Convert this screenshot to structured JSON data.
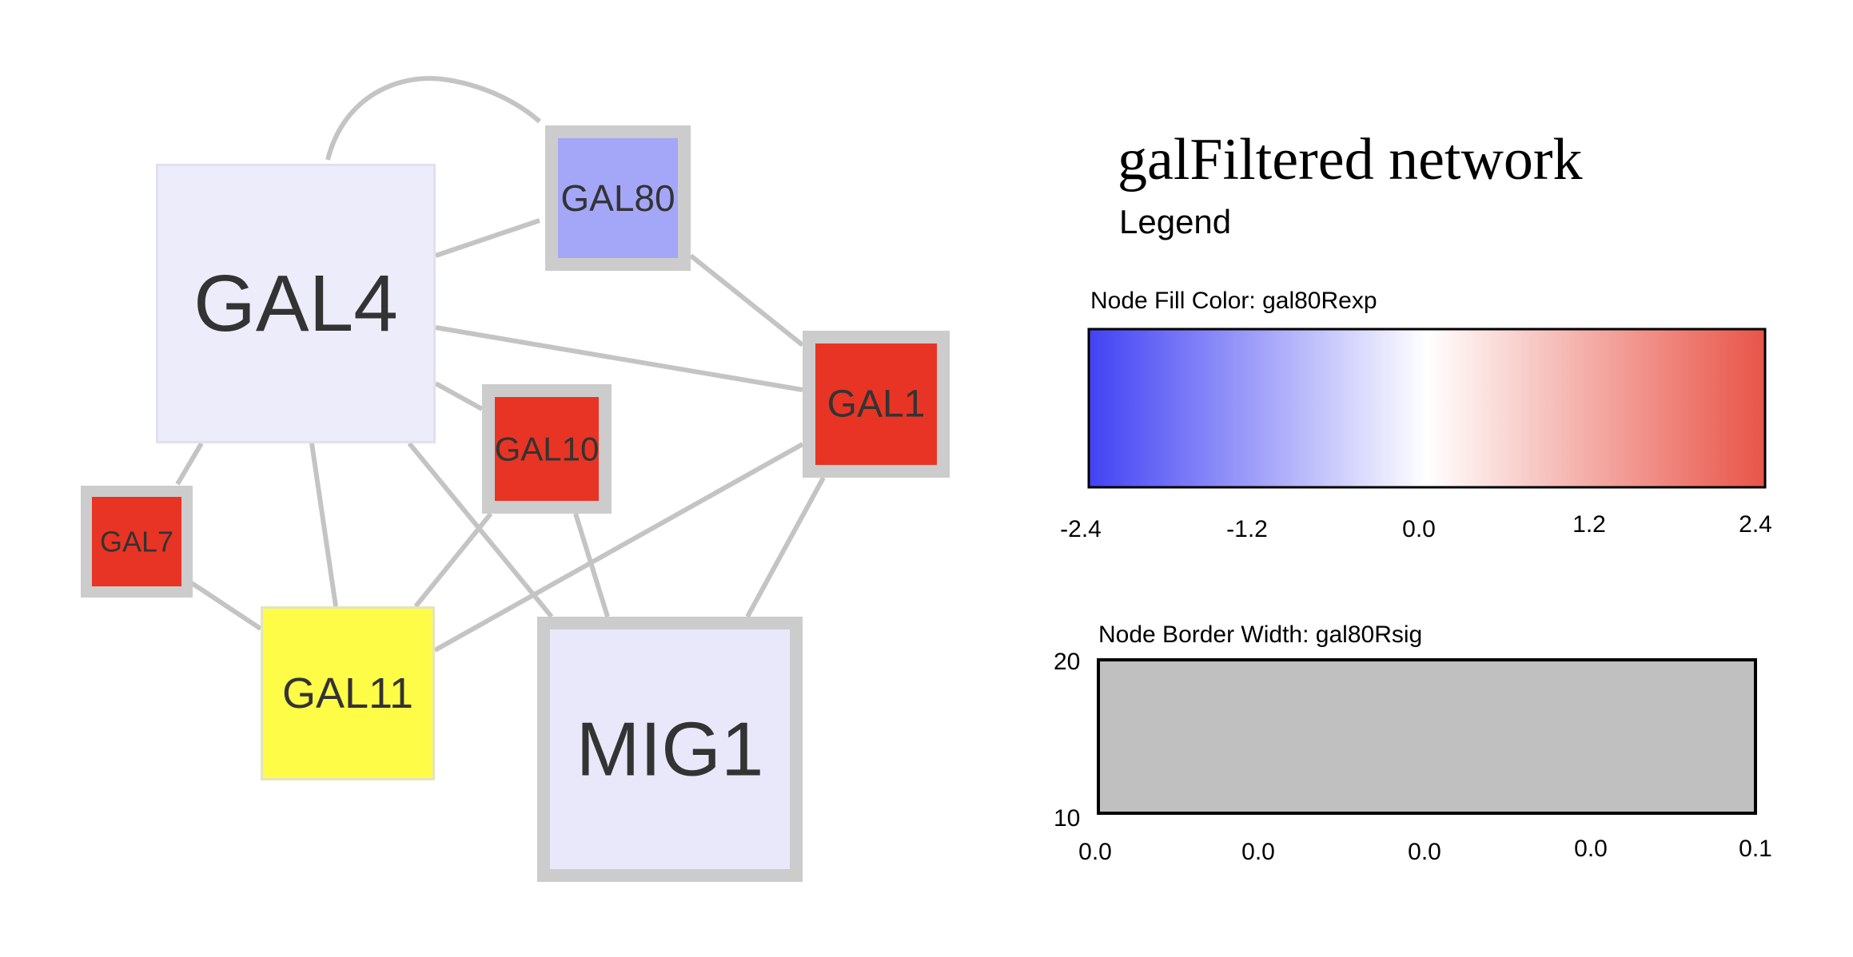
{
  "network": {
    "nodes": [
      {
        "id": "GAL4",
        "label": "GAL4",
        "fill": "#ececfa",
        "border": "#e0e0ee"
      },
      {
        "id": "GAL80",
        "label": "GAL80",
        "fill": "#a4a6f8",
        "border": "#cccccc"
      },
      {
        "id": "GAL1",
        "label": "GAL1",
        "fill": "#e83424",
        "border": "#cccccc"
      },
      {
        "id": "GAL10",
        "label": "GAL10",
        "fill": "#e83424",
        "border": "#cccccc"
      },
      {
        "id": "GAL7",
        "label": "GAL7",
        "fill": "#e83424",
        "border": "#cccccc"
      },
      {
        "id": "GAL11",
        "label": "GAL11",
        "fill": "#fffc48",
        "border": "#e4e4c0"
      },
      {
        "id": "MIG1",
        "label": "MIG1",
        "fill": "#e8e8fa",
        "border": "#cccccc"
      }
    ],
    "edges": [
      {
        "source": "GAL4",
        "target": "GAL80",
        "curved": true
      },
      {
        "source": "GAL4",
        "target": "GAL80"
      },
      {
        "source": "GAL4",
        "target": "GAL1"
      },
      {
        "source": "GAL4",
        "target": "GAL10"
      },
      {
        "source": "GAL4",
        "target": "GAL7"
      },
      {
        "source": "GAL4",
        "target": "GAL11"
      },
      {
        "source": "GAL4",
        "target": "MIG1"
      },
      {
        "source": "GAL80",
        "target": "GAL1"
      },
      {
        "source": "GAL1",
        "target": "GAL11"
      },
      {
        "source": "GAL1",
        "target": "MIG1"
      },
      {
        "source": "GAL10",
        "target": "GAL11"
      },
      {
        "source": "GAL10",
        "target": "MIG1"
      },
      {
        "source": "GAL7",
        "target": "GAL11"
      }
    ],
    "edge_color": "#c4c4c4"
  },
  "legend": {
    "title": "galFiltered network",
    "subtitle": "Legend",
    "fill_color": {
      "label": "Node Fill Color:  gal80Rexp",
      "colors": [
        "#4242f4",
        "#ffffff",
        "#e85448"
      ],
      "ticks": [
        "-2.4",
        "-1.2",
        "0.0",
        "1.2",
        "2.4"
      ]
    },
    "border_width": {
      "label": "Node Border Width:  gal80Rsig",
      "y_max": "20",
      "y_min": "10",
      "fill": "#c0c0c0",
      "ticks": [
        "0.0",
        "0.0",
        "0.0",
        "0.0",
        "0.1"
      ]
    }
  }
}
